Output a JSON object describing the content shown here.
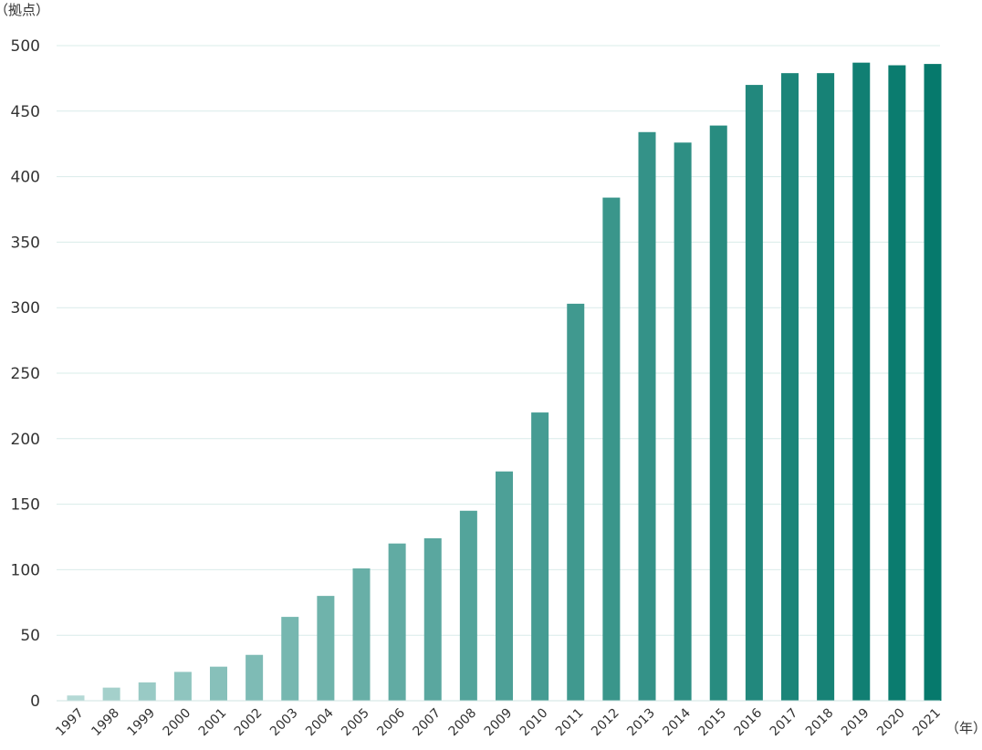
{
  "chart_data": {
    "type": "bar",
    "y_unit_label": "（拠点）",
    "x_unit_label": "（年）",
    "categories": [
      "1997",
      "1998",
      "1999",
      "2000",
      "2001",
      "2002",
      "2003",
      "2004",
      "2005",
      "2006",
      "2007",
      "2008",
      "2009",
      "2010",
      "2011",
      "2012",
      "2013",
      "2014",
      "2015",
      "2016",
      "2017",
      "2018",
      "2019",
      "2020",
      "2021"
    ],
    "values": [
      4,
      10,
      14,
      22,
      26,
      35,
      64,
      80,
      101,
      120,
      124,
      145,
      175,
      220,
      303,
      384,
      434,
      426,
      439,
      470,
      479,
      479,
      487,
      485,
      486
    ],
    "ylim": [
      0,
      500
    ],
    "yticks": [
      0,
      50,
      100,
      150,
      200,
      250,
      300,
      350,
      400,
      450,
      500
    ],
    "grid": true,
    "legend": "none",
    "colors": {
      "start": "#b4d9d5",
      "end": "#06796c"
    }
  }
}
